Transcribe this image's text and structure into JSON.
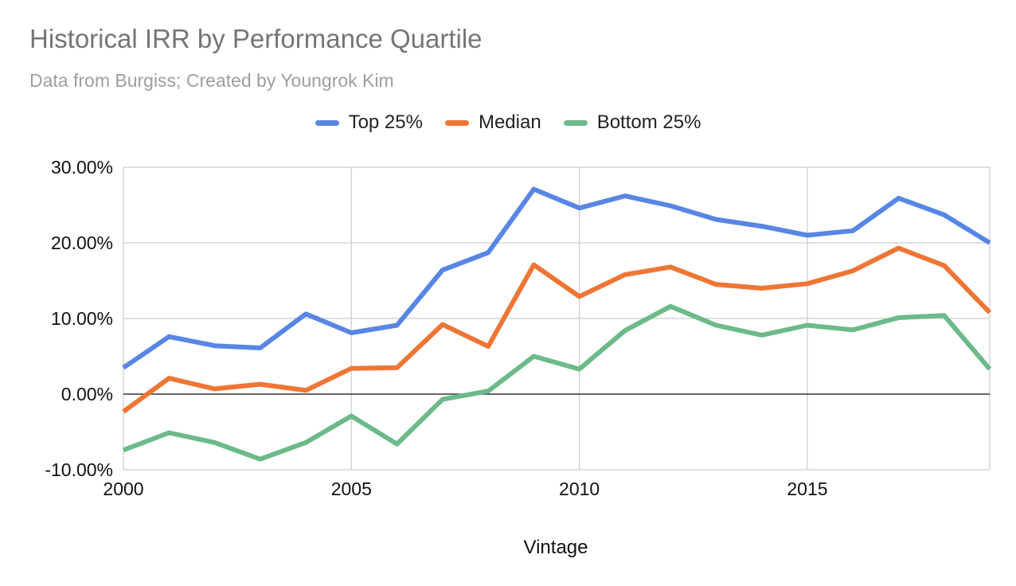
{
  "chart_data": {
    "type": "line",
    "title": "Historical IRR by Performance Quartile",
    "subtitle": "Data from Burgiss; Created by Youngrok Kim",
    "xlabel": "Vintage",
    "ylabel": "",
    "xlim": [
      2000,
      2019
    ],
    "ylim": [
      -10,
      30
    ],
    "grid": true,
    "legend_position": "top",
    "x": [
      2000,
      2001,
      2002,
      2003,
      2004,
      2005,
      2006,
      2007,
      2008,
      2009,
      2010,
      2011,
      2012,
      2013,
      2014,
      2015,
      2016,
      2017,
      2018,
      2019
    ],
    "x_ticks": [
      2000,
      2005,
      2010,
      2015
    ],
    "x_tick_labels": [
      "2000",
      "2005",
      "2010",
      "2015"
    ],
    "y_ticks": [
      -10,
      0,
      10,
      20,
      30
    ],
    "y_tick_labels": [
      "-10.00%",
      "0.00%",
      "10.00%",
      "20.00%",
      "30.00%"
    ],
    "series": [
      {
        "name": "Top 25%",
        "color": "#5886E5",
        "values": [
          3.5,
          7.6,
          6.4,
          6.1,
          10.6,
          8.1,
          9.1,
          16.4,
          18.7,
          27.1,
          24.6,
          26.2,
          24.9,
          23.1,
          22.2,
          21.0,
          21.6,
          25.9,
          23.7,
          20.0
        ]
      },
      {
        "name": "Median",
        "color": "#EE7635",
        "values": [
          -2.3,
          2.1,
          0.7,
          1.3,
          0.5,
          3.4,
          3.5,
          9.2,
          6.3,
          17.1,
          12.9,
          15.8,
          16.8,
          14.5,
          14.0,
          14.6,
          16.3,
          19.3,
          17.0,
          10.8
        ]
      },
      {
        "name": "Bottom 25%",
        "color": "#6CBA8A",
        "values": [
          -7.4,
          -5.1,
          -6.4,
          -8.6,
          -6.4,
          -2.9,
          -6.6,
          -0.7,
          0.4,
          5.0,
          3.3,
          8.4,
          11.6,
          9.1,
          7.8,
          9.1,
          8.5,
          10.1,
          10.4,
          3.3
        ]
      }
    ]
  }
}
